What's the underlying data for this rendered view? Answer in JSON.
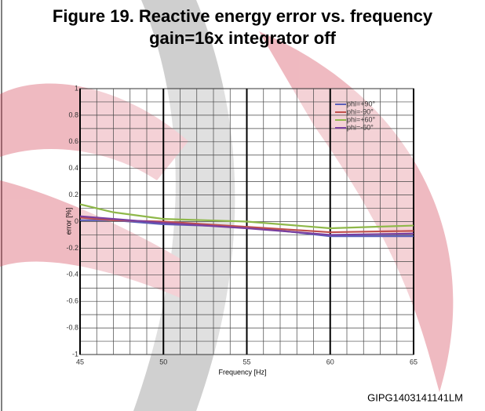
{
  "chart_data": {
    "type": "line",
    "title": "Figure 19. Reactive energy error vs. frequency",
    "subtitle": "gain=16x integrator off",
    "x_label": "Frequency [Hz]",
    "y_label": "error [%]",
    "x": [
      45,
      47,
      50,
      55,
      60,
      65
    ],
    "series": [
      {
        "name": "phi=+90°",
        "color": "#5a5fb8",
        "values": [
          0.01,
          0.01,
          -0.02,
          -0.04,
          -0.11,
          -0.11
        ]
      },
      {
        "name": "phi=-90°",
        "color": "#c0504d",
        "values": [
          0.03,
          0.01,
          0.0,
          -0.04,
          -0.08,
          -0.07
        ]
      },
      {
        "name": "phi=+60°",
        "color": "#8fb84a",
        "values": [
          0.13,
          0.07,
          0.02,
          0.0,
          -0.05,
          -0.03
        ]
      },
      {
        "name": "phi=-60°",
        "color": "#7a3fa0",
        "values": [
          0.04,
          0.02,
          -0.01,
          -0.05,
          -0.1,
          -0.09
        ]
      }
    ],
    "xlim": [
      45,
      65
    ],
    "xticks": [
      45,
      50,
      55,
      60,
      65
    ],
    "ylim": [
      -1,
      1
    ],
    "yticks": [
      -1,
      -0.8,
      -0.6,
      -0.4,
      -0.2,
      0,
      0.2,
      0.4,
      0.6,
      0.8,
      1
    ],
    "x_grid": [
      45,
      46,
      47,
      48,
      49,
      50,
      51,
      52,
      53,
      54,
      55,
      56,
      57,
      58,
      59,
      60,
      61,
      62,
      63,
      64,
      65
    ],
    "y_grid": [
      -1,
      -0.9,
      -0.8,
      -0.7,
      -0.6,
      -0.5,
      -0.4,
      -0.3,
      -0.2,
      -0.1,
      0,
      0.1,
      0.2,
      0.3,
      0.4,
      0.5,
      0.6,
      0.7,
      0.8,
      0.9,
      1
    ],
    "legend": "upper right",
    "footer": "GIPG1403141141LM"
  }
}
